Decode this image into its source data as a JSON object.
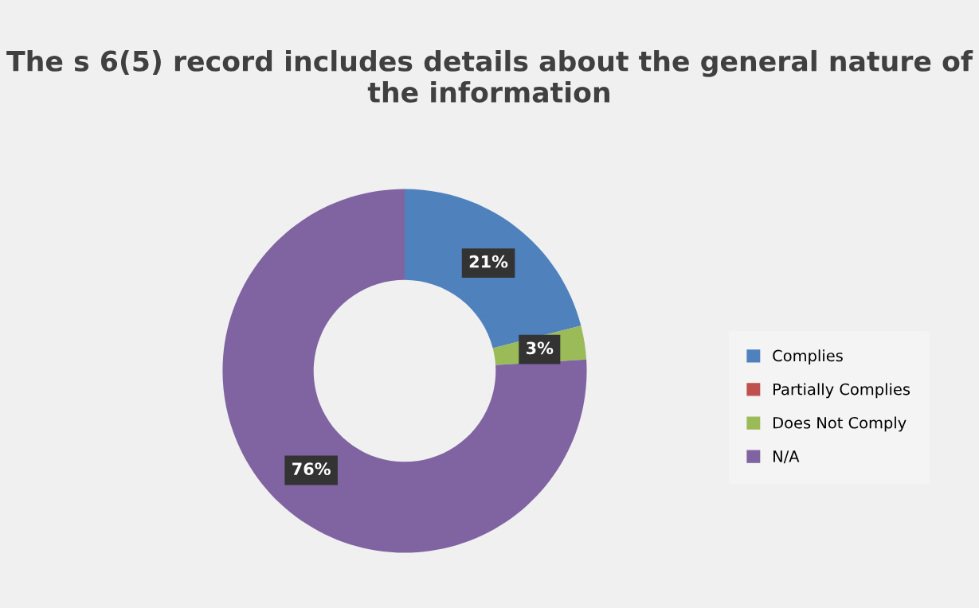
{
  "chart_data": {
    "type": "donut",
    "title": "The s 6(5) record includes details about the general nature of the information",
    "categories": [
      "Complies",
      "Partially Complies",
      "Does Not Comply",
      "N/A"
    ],
    "values": [
      21,
      0,
      3,
      76
    ],
    "colors": [
      "#4f81bd",
      "#c0504d",
      "#9bbb59",
      "#8064a2"
    ],
    "value_labels": [
      "21%",
      null,
      "3%",
      "76%"
    ],
    "legend": "right"
  }
}
